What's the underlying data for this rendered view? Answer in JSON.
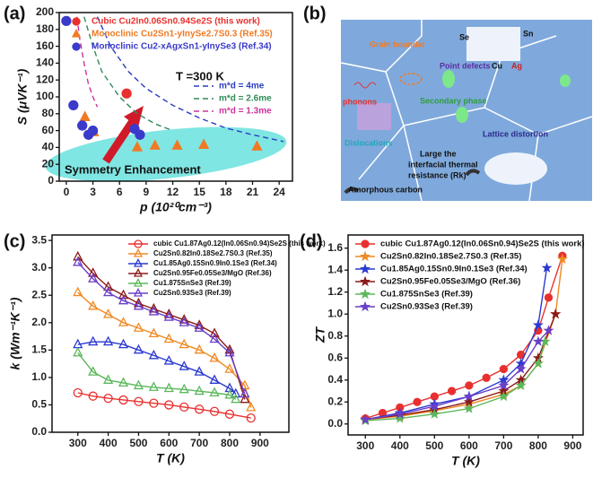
{
  "chart_data": [
    {
      "type": "scatter",
      "panel_label": "(a)",
      "xlabel": "p (10²⁰cm⁻³)",
      "ylabel": "S (μVK⁻¹)",
      "xlim": [
        -0.8,
        25.5
      ],
      "xticks": [
        0,
        3,
        6,
        9,
        12,
        15,
        18,
        21,
        24
      ],
      "ylim": [
        0,
        200
      ],
      "yticks": [
        0,
        20,
        40,
        60,
        80,
        100,
        120,
        140,
        160,
        180,
        200
      ],
      "legend": "upper left",
      "line_legend": "center right",
      "legend_text_colored": true,
      "annotations": [
        "T =300 K",
        "Symmetry Enhancement"
      ],
      "series": [
        {
          "name": "Cubic Cu2In0.06Sn0.94Se2S (this work)",
          "color": "#e8312f",
          "marker": "circle",
          "x": [
            6.8
          ],
          "values": [
            104
          ]
        },
        {
          "name": "Monoclinic Cu2Sn1-yInySe2.7S0.3 (Ref.35)",
          "color": "#f07a24",
          "marker": "triangle",
          "x": [
            2.1,
            3.1,
            8,
            10,
            12.5,
            15.5,
            21.5
          ],
          "values": [
            76,
            58,
            40,
            42,
            42,
            43,
            41
          ]
        },
        {
          "name": "Monoclinic Cu2-xAgxSn1-yInySe3 (Ref.34)",
          "color": "#3a3acb",
          "marker": "circle",
          "x": [
            0,
            0.8,
            1.8,
            2.5,
            3,
            7.7,
            8.3
          ],
          "values": [
            190,
            90,
            66,
            55,
            60,
            62,
            55
          ]
        },
        {
          "name": "m*d = 4me",
          "color": "#2b3dbf",
          "line_style": "dashed",
          "x": [
            3.5,
            5,
            7,
            9,
            12,
            15,
            18,
            21,
            24.5
          ],
          "values": [
            195,
            160,
            130,
            110,
            90,
            75,
            63,
            55,
            47
          ]
        },
        {
          "name": "m*d = 2.6me",
          "color": "#2e8b57",
          "line_style": "dashed",
          "x": [
            2,
            3,
            4,
            6,
            8,
            10,
            12
          ],
          "values": [
            195,
            160,
            130,
            100,
            80,
            68,
            60
          ]
        },
        {
          "name": "m*d = 1.3me",
          "color": "#cc3399",
          "line_style": "dashed",
          "x": [
            1.2,
            1.5,
            2,
            2.5,
            3,
            3.5
          ],
          "values": [
            195,
            170,
            140,
            115,
            100,
            88
          ]
        }
      ]
    },
    {
      "type": "line",
      "panel_label": "(c)",
      "xlabel": "T (K)",
      "ylabel": "k (Wm⁻¹K⁻¹)",
      "marker_fill": "open",
      "xlim": [
        215,
        995
      ],
      "xticks": [
        300,
        400,
        500,
        600,
        700,
        800,
        900
      ],
      "ylim": [
        0,
        3.6
      ],
      "yticks": [
        {
          "value": 0,
          "label": "0.0"
        },
        0.5,
        {
          "value": 1,
          "label": "1.0"
        },
        1.5,
        {
          "value": 2,
          "label": "2.0"
        },
        2.5,
        {
          "value": 3,
          "label": "3.0"
        },
        3.5
      ],
      "legend": "upper right",
      "series": [
        {
          "name": "cubic Cu1.87Ag0.12(In0.06Sn0.94)Se2S (this work)",
          "color": "#e8312f",
          "marker": "circle",
          "x": [
            300,
            350,
            400,
            450,
            500,
            550,
            600,
            650,
            700,
            750,
            800,
            870
          ],
          "values": [
            0.72,
            0.66,
            0.62,
            0.59,
            0.56,
            0.53,
            0.5,
            0.46,
            0.42,
            0.38,
            0.33,
            0.26
          ]
        },
        {
          "name": "Cu2Sn0.82In0.18Se2.7S0.3 (Ref.35)",
          "color": "#f08a24",
          "marker": "triangle",
          "x": [
            300,
            350,
            400,
            450,
            500,
            550,
            600,
            650,
            700,
            750,
            800,
            850,
            870
          ],
          "values": [
            2.55,
            2.3,
            2.15,
            2.0,
            1.9,
            1.8,
            1.7,
            1.6,
            1.5,
            1.35,
            1.15,
            0.85,
            0.45
          ]
        },
        {
          "name": "Cu1.85Ag0.15Sn0.9In0.1Se3 (Ref.34)",
          "color": "#2a3ad1",
          "marker": "triangle",
          "x": [
            300,
            350,
            400,
            450,
            500,
            550,
            600,
            650,
            700,
            750,
            800,
            820
          ],
          "values": [
            1.6,
            1.65,
            1.65,
            1.6,
            1.5,
            1.4,
            1.3,
            1.2,
            1.1,
            0.95,
            0.8,
            0.7
          ]
        },
        {
          "name": "Cu2Sn0.95Fe0.05Se3/MgO (Ref.36)",
          "color": "#8b1a1a",
          "marker": "triangle",
          "x": [
            300,
            350,
            400,
            450,
            500,
            550,
            600,
            650,
            700,
            750,
            800,
            850
          ],
          "values": [
            3.2,
            2.9,
            2.65,
            2.5,
            2.35,
            2.25,
            2.15,
            2.05,
            1.95,
            1.8,
            1.5,
            0.6
          ]
        },
        {
          "name": "Cu1.875SnSe3 (Ref.39)",
          "color": "#5cb85c",
          "marker": "triangle",
          "x": [
            300,
            350,
            400,
            450,
            500,
            550,
            600,
            650,
            700,
            750,
            800,
            820
          ],
          "values": [
            1.45,
            1.1,
            0.95,
            0.9,
            0.85,
            0.82,
            0.8,
            0.78,
            0.75,
            0.72,
            0.68,
            0.6
          ]
        },
        {
          "name": "Cu2Sn0.93Se3 (Ref.39)",
          "color": "#6a3fc9",
          "marker": "triangle",
          "x": [
            300,
            350,
            400,
            450,
            500,
            550,
            600,
            650,
            700,
            750,
            800,
            850
          ],
          "values": [
            3.1,
            2.8,
            2.55,
            2.4,
            2.3,
            2.2,
            2.1,
            2.0,
            1.9,
            1.7,
            1.45,
            0.7
          ]
        }
      ]
    },
    {
      "type": "line",
      "panel_label": "(d)",
      "xlabel": "T (K)",
      "ylabel": "ZT",
      "marker_fill": "filled",
      "xlim": [
        250,
        930
      ],
      "xticks": [
        300,
        400,
        500,
        600,
        700,
        800,
        900
      ],
      "ylim": [
        -0.1,
        1.72
      ],
      "yticks": [
        {
          "value": 0,
          "label": "0.0"
        },
        0.2,
        0.4,
        0.6,
        0.8,
        {
          "value": 1,
          "label": "1.0"
        },
        1.2,
        1.4,
        1.6
      ],
      "legend": "upper left",
      "series": [
        {
          "name": "cubic Cu1.87Ag0.12(In0.06Sn0.94)Se2S (this work)",
          "color": "#e8312f",
          "marker": "circle",
          "x": [
            300,
            350,
            400,
            450,
            500,
            550,
            600,
            650,
            700,
            750,
            800,
            830,
            870
          ],
          "values": [
            0.05,
            0.1,
            0.15,
            0.2,
            0.25,
            0.3,
            0.35,
            0.42,
            0.5,
            0.63,
            0.85,
            1.15,
            1.53
          ]
        },
        {
          "name": "Cu2Sn0.82In0.18Se2.7S0.3 (Ref.35)",
          "color": "#f08a24",
          "marker": "star",
          "x": [
            300,
            400,
            500,
            600,
            700,
            750,
            800,
            850,
            870
          ],
          "values": [
            0.04,
            0.07,
            0.12,
            0.18,
            0.27,
            0.35,
            0.55,
            1.0,
            1.5
          ]
        },
        {
          "name": "Cu1.85Ag0.15Sn0.9In0.1Se3 (Ref.34)",
          "color": "#2a3ad1",
          "marker": "star",
          "x": [
            300,
            400,
            500,
            600,
            700,
            750,
            800,
            825
          ],
          "values": [
            0.04,
            0.1,
            0.18,
            0.25,
            0.4,
            0.55,
            0.9,
            1.42
          ]
        },
        {
          "name": "Cu2Sn0.95Fe0.05Se3/MgO (Ref.36)",
          "color": "#8b1a1a",
          "marker": "star",
          "x": [
            300,
            400,
            500,
            600,
            700,
            750,
            800,
            850
          ],
          "values": [
            0.04,
            0.08,
            0.13,
            0.2,
            0.3,
            0.4,
            0.6,
            1.0
          ]
        },
        {
          "name": "Cu1.875SnSe3 (Ref.39)",
          "color": "#5cb85c",
          "marker": "star",
          "x": [
            300,
            400,
            500,
            600,
            700,
            750,
            800,
            820
          ],
          "values": [
            0.03,
            0.05,
            0.09,
            0.14,
            0.25,
            0.35,
            0.55,
            0.75
          ]
        },
        {
          "name": "Cu2Sn0.93Se3 (Ref.39)",
          "color": "#6a3fc9",
          "marker": "star",
          "x": [
            300,
            400,
            500,
            600,
            700,
            750,
            800,
            830
          ],
          "values": [
            0.04,
            0.09,
            0.16,
            0.25,
            0.35,
            0.5,
            0.75,
            0.85
          ]
        }
      ]
    }
  ],
  "diagram": {
    "panel_label": "(b)",
    "labels": [
      "Grain boundar",
      "Point defects",
      "phonons",
      "Secondary phase",
      "Dislocations",
      "Lattice distortion",
      "Large the",
      "interfacial thermal",
      "resistance (Rk)",
      "Amorphous carbon",
      "Se",
      "Sn",
      "Cu",
      "Ag"
    ]
  }
}
